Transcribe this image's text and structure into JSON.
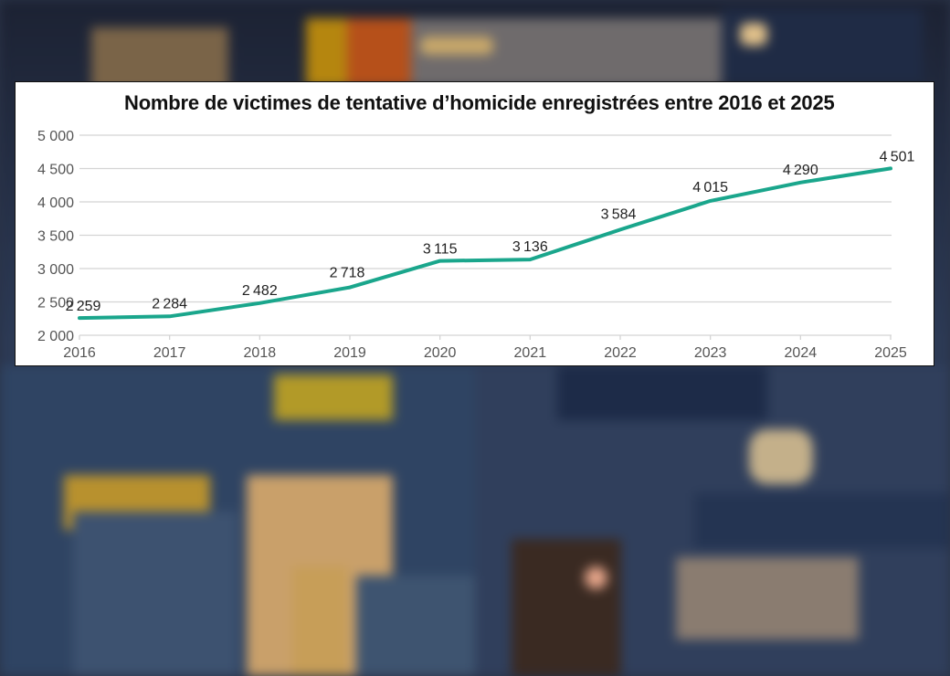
{
  "chart_data": {
    "type": "line",
    "title": "Nombre de victimes de tentative d’homicide enregistrées entre 2016 et 2025",
    "xlabel": "",
    "ylabel": "",
    "categories": [
      "2016",
      "2017",
      "2018",
      "2019",
      "2020",
      "2021",
      "2022",
      "2023",
      "2024",
      "2025"
    ],
    "series": [
      {
        "name": "Victimes de tentative d’homicide",
        "values": [
          2259,
          2284,
          2482,
          2718,
          3115,
          3136,
          3584,
          4015,
          4290,
          4501
        ],
        "labels": [
          "2 259",
          "2 284",
          "2 482",
          "2 718",
          "3 115",
          "3 136",
          "3 584",
          "4 015",
          "4 290",
          "4 501"
        ],
        "color": "#1aa68c"
      }
    ],
    "ylim": [
      2000,
      5000
    ],
    "yticks": [
      2000,
      2500,
      3000,
      3500,
      4000,
      4500,
      5000
    ],
    "ytick_labels": [
      "2 000",
      "2 500",
      "3 000",
      "3 500",
      "4 000",
      "4 500",
      "5 000"
    ],
    "grid": true,
    "legend": "none"
  },
  "colors": {
    "line": "#1aa68c",
    "grid": "#d4d4d4",
    "axis_text": "#555555",
    "label_text": "#222222",
    "title_text": "#111111"
  }
}
